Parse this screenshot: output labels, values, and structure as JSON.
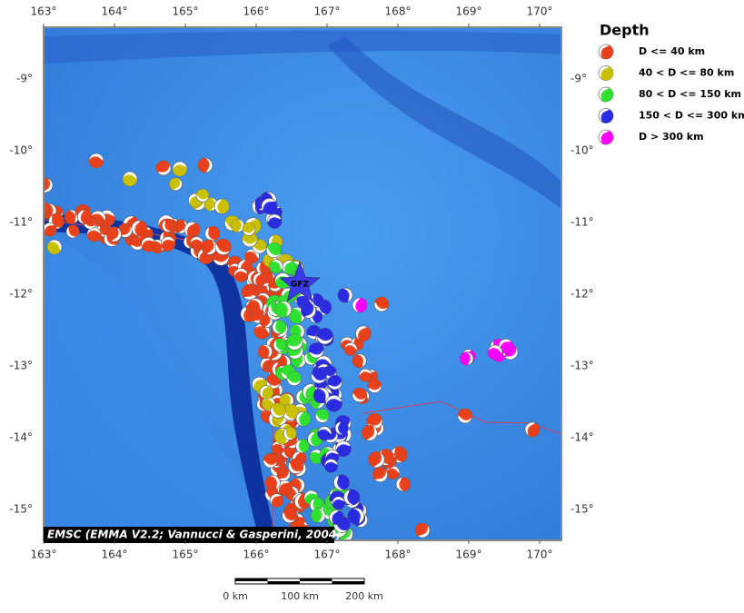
{
  "map": {
    "lon_labels": [
      "163°",
      "164°",
      "165°",
      "166°",
      "167°",
      "168°",
      "169°",
      "170°"
    ],
    "lat_labels": [
      "-9°",
      "-10°",
      "-11°",
      "-12°",
      "-13°",
      "-14°",
      "-15°"
    ],
    "legend": {
      "title": "Depth",
      "items": [
        {
          "label": "D <= 40 km",
          "color": "#e8401a"
        },
        {
          "label": "40 < D <= 80 km",
          "color": "#c8c000"
        },
        {
          "label": "80 < D <= 150 km",
          "color": "#30e030"
        },
        {
          "label": "150 < D <= 300 km",
          "color": "#2a2ae0"
        },
        {
          "label": "D > 300 km",
          "color": "#ff00ff"
        }
      ]
    },
    "credit": "EMSC (EMMA V2.2; Vannucci & Gasperini, 2004)",
    "marker_label": "GFZ",
    "scale_labels": [
      "0 km",
      "100 km",
      "200 km"
    ]
  }
}
